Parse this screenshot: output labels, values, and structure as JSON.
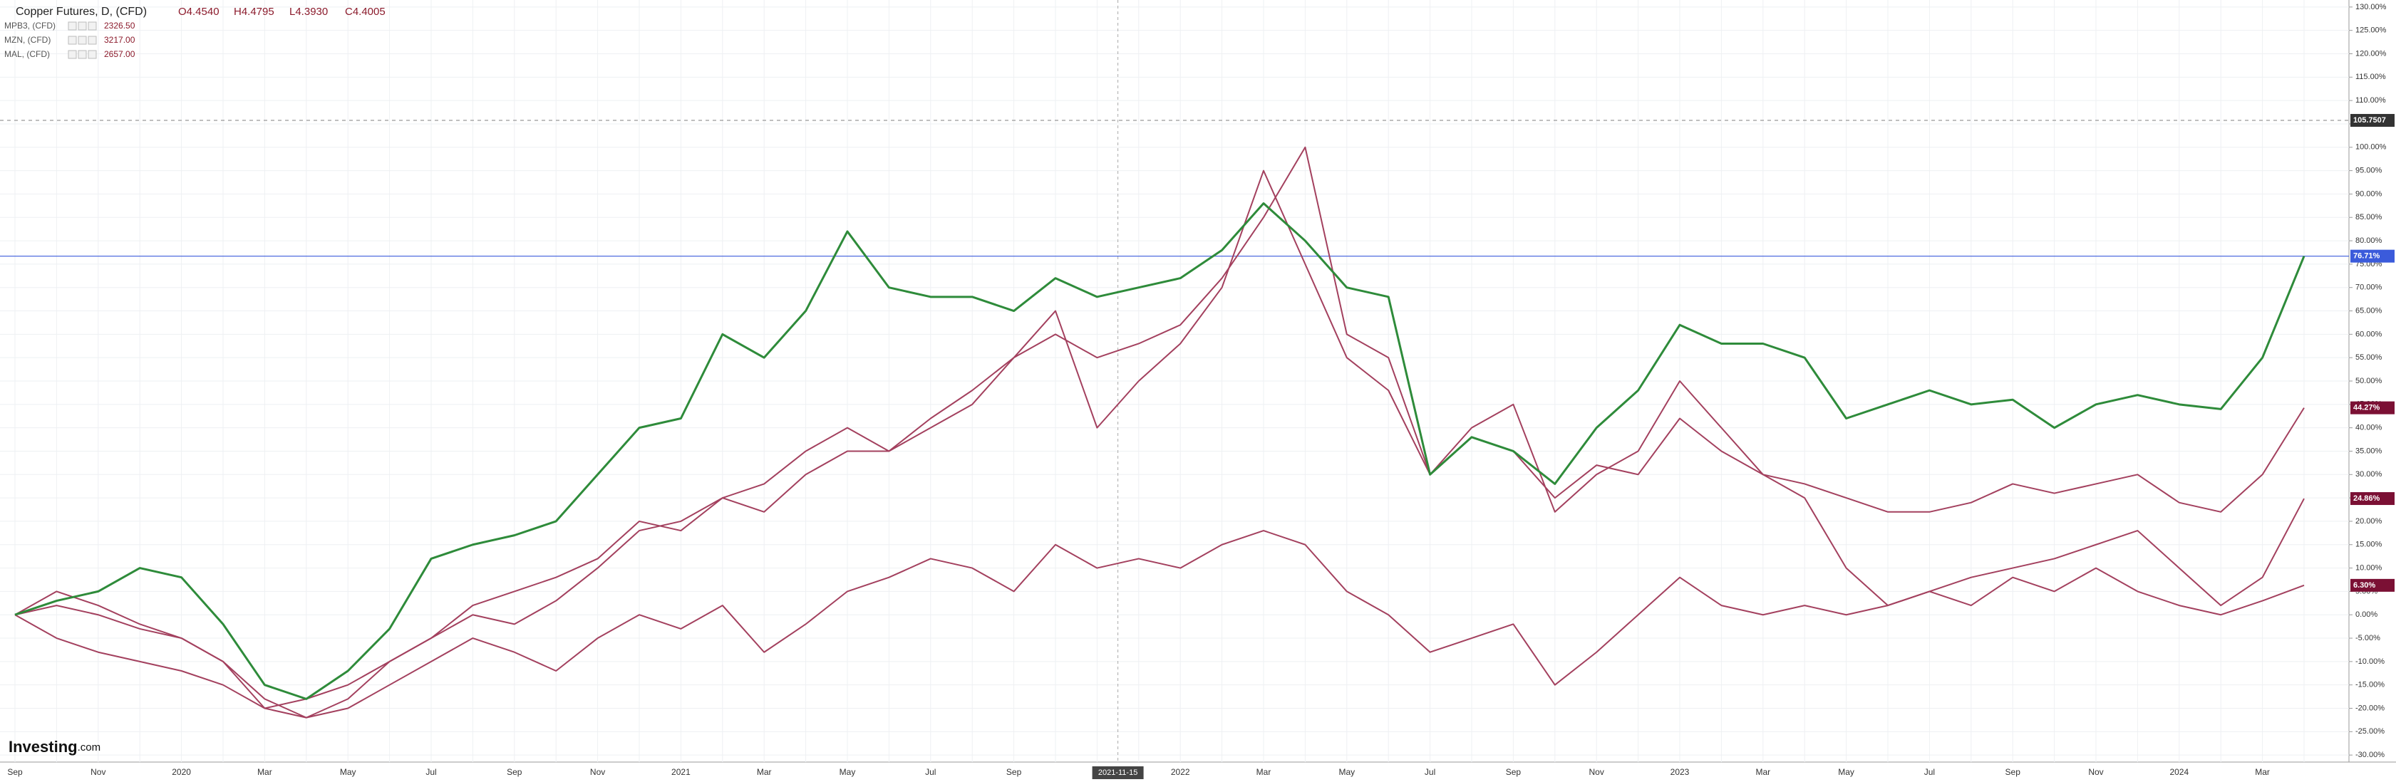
{
  "chart_data": {
    "type": "line",
    "ohlc": [
      "O4.4540",
      "H4.4795",
      "L4.3930",
      "C4.4005"
    ],
    "categories": [
      "Sep",
      null,
      "Nov",
      null,
      "2020",
      null,
      "Mar",
      null,
      "May",
      null,
      "Jul",
      null,
      "Sep",
      null,
      "Nov",
      null,
      "2021",
      null,
      "Mar",
      null,
      "May",
      null,
      "Jul",
      null,
      "Sep",
      null,
      null,
      null,
      "2022",
      null,
      "Mar",
      null,
      "May",
      null,
      "Jul",
      null,
      "Sep",
      null,
      "Nov",
      null,
      "2023",
      null,
      "Mar",
      null,
      "May",
      null,
      "Jul",
      null,
      "Sep",
      null,
      "Nov",
      null,
      "2024",
      null,
      "Mar",
      null
    ],
    "crosshair": "2021-11-15",
    "series": [
      {
        "name": "Copper Futures, D, (CFD)",
        "color": "#2e8b3a",
        "values": [
          0,
          3,
          5,
          10,
          8,
          -2,
          -15,
          -18,
          -12,
          -3,
          12,
          15,
          17,
          20,
          30,
          40,
          42,
          60,
          55,
          65,
          82,
          70,
          68,
          68,
          65,
          72,
          68,
          70,
          72,
          78,
          88,
          80,
          70,
          68,
          30,
          38,
          35,
          28,
          40,
          48,
          62,
          58,
          58,
          55,
          42,
          45,
          48,
          45,
          46,
          40,
          45,
          47,
          45,
          44,
          55,
          76.71
        ]
      },
      {
        "name": "MPB3, (CFD)",
        "last": "2326.50",
        "color": "#a3405e",
        "values": [
          0,
          -5,
          -8,
          -10,
          -12,
          -15,
          -20,
          -22,
          -20,
          -15,
          -10,
          -5,
          -8,
          -12,
          -5,
          0,
          -3,
          2,
          -8,
          -2,
          5,
          8,
          12,
          10,
          5,
          15,
          10,
          12,
          10,
          15,
          18,
          15,
          5,
          0,
          -8,
          -5,
          -2,
          -15,
          -8,
          0,
          8,
          2,
          0,
          2,
          0,
          2,
          5,
          2,
          8,
          5,
          10,
          5,
          2,
          0,
          3,
          6.3
        ]
      },
      {
        "name": "MZN, (CFD)",
        "last": "3217.00",
        "color": "#a3405e",
        "values": [
          0,
          5,
          2,
          -2,
          -5,
          -10,
          -20,
          -18,
          -15,
          -10,
          -5,
          2,
          5,
          8,
          12,
          20,
          18,
          25,
          28,
          35,
          40,
          35,
          42,
          48,
          55,
          60,
          55,
          58,
          62,
          72,
          85,
          100,
          60,
          55,
          30,
          40,
          45,
          22,
          30,
          35,
          50,
          40,
          30,
          25,
          10,
          2,
          5,
          8,
          10,
          12,
          15,
          18,
          10,
          2,
          8,
          24.86
        ]
      },
      {
        "name": "MAL, (CFD)",
        "last": "2657.00",
        "color": "#a3405e",
        "values": [
          0,
          2,
          0,
          -3,
          -5,
          -10,
          -18,
          -22,
          -18,
          -10,
          -5,
          0,
          -2,
          3,
          10,
          18,
          20,
          25,
          22,
          30,
          35,
          35,
          40,
          45,
          55,
          65,
          40,
          50,
          58,
          70,
          95,
          75,
          55,
          48,
          30,
          38,
          35,
          25,
          32,
          30,
          42,
          35,
          30,
          28,
          25,
          22,
          22,
          24,
          28,
          26,
          28,
          30,
          24,
          22,
          30,
          44.27
        ]
      }
    ],
    "markers": [
      {
        "value": 105.7507,
        "label": "105.7507",
        "color": "#333333",
        "line": "dashed"
      },
      {
        "value": 76.71,
        "label": "76.71%",
        "color": "#3b5bdb",
        "line": "solid"
      },
      {
        "value": 44.27,
        "label": "44.27%",
        "color": "#7b1034",
        "line": "none"
      },
      {
        "value": 24.86,
        "label": "24.86%",
        "color": "#7b1034",
        "line": "none"
      },
      {
        "value": 6.3,
        "label": "6.30%",
        "color": "#7b1034",
        "line": "none"
      }
    ],
    "ylim": [
      -31.5,
      131.5
    ],
    "yticks": [
      {
        "value": 130,
        "label": "130.00%"
      },
      {
        "value": 125,
        "label": "125.00%"
      },
      {
        "value": 120,
        "label": "120.00%"
      },
      {
        "value": 115,
        "label": "115.00%"
      },
      {
        "value": 110,
        "label": "110.00%"
      },
      {
        "value": 105,
        "label": "105.00%"
      },
      {
        "value": 100,
        "label": "100.00%"
      },
      {
        "value": 95,
        "label": "95.00%"
      },
      {
        "value": 90,
        "label": "90.00%"
      },
      {
        "value": 85,
        "label": "85.00%"
      },
      {
        "value": 80,
        "label": "80.00%"
      },
      {
        "value": 75,
        "label": "75.00%"
      },
      {
        "value": 70,
        "label": "70.00%"
      },
      {
        "value": 65,
        "label": "65.00%"
      },
      {
        "value": 60,
        "label": "60.00%"
      },
      {
        "value": 55,
        "label": "55.00%"
      },
      {
        "value": 50,
        "label": "50.00%"
      },
      {
        "value": 45,
        "label": "45.00%"
      },
      {
        "value": 40,
        "label": "40.00%"
      },
      {
        "value": 35,
        "label": "35.00%"
      },
      {
        "value": 30,
        "label": "30.00%"
      },
      {
        "value": 25,
        "label": "25.00%"
      },
      {
        "value": 20,
        "label": "20.00%"
      },
      {
        "value": 15,
        "label": "15.00%"
      },
      {
        "value": 10,
        "label": "10.00%"
      },
      {
        "value": 5,
        "label": "5.00%"
      },
      {
        "value": 0,
        "label": "0.00%"
      },
      {
        "value": -5,
        "label": "-5.00%"
      },
      {
        "value": -10,
        "label": "-10.00%"
      },
      {
        "value": -15,
        "label": "-15.00%"
      },
      {
        "value": -20,
        "label": "-20.00%"
      },
      {
        "value": -25,
        "label": "-25.00%"
      },
      {
        "value": -30,
        "label": "-30.00%"
      }
    ],
    "grid": true,
    "logo": "Investing",
    "logo_suffix": ".com"
  }
}
